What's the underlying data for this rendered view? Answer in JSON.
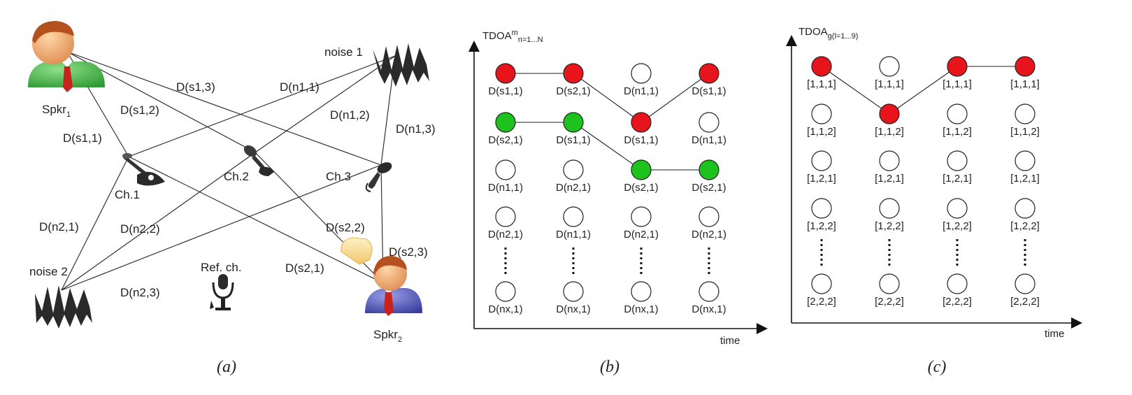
{
  "colors": {
    "red": "#e8141b",
    "green": "#1ec21e",
    "empty": "#ffffff"
  },
  "panel_a": {
    "caption": "(a)",
    "speaker1": {
      "label": "Spkr",
      "sub": "1"
    },
    "speaker2": {
      "label": "Spkr",
      "sub": "2"
    },
    "noise1": "noise 1",
    "noise2": "noise 2",
    "ref_ch": "Ref. ch.",
    "channels": [
      "Ch.1",
      "Ch.2",
      "Ch.3"
    ],
    "distances": [
      "D(s1,1)",
      "D(s1,2)",
      "D(s1,3)",
      "D(n1,1)",
      "D(n1,2)",
      "D(n1,3)",
      "D(n2,1)",
      "D(n2,2)",
      "D(n2,3)",
      "D(s2,1)",
      "D(s2,2)",
      "D(s2,3)"
    ]
  },
  "panel_b": {
    "caption": "(b)",
    "axis_y": {
      "main": "TDOA",
      "sup": "m",
      "sub": "n=1...N"
    },
    "axis_x": "time",
    "columns": [
      [
        "D(s1,1)",
        "D(s2,1)",
        "D(n1,1)",
        "D(n2,1)",
        "D(nx,1)"
      ],
      [
        "D(s2,1)",
        "D(s1,1)",
        "D(n2,1)",
        "D(n1,1)",
        "D(nx,1)"
      ],
      [
        "D(n1,1)",
        "D(s1,1)",
        "D(s2,1)",
        "D(n2,1)",
        "D(nx,1)"
      ],
      [
        "D(s1,1)",
        "D(n1,1)",
        "D(s2,1)",
        "D(n2,1)",
        "D(nx,1)"
      ]
    ],
    "states": [
      [
        "red",
        "green",
        "empty",
        "empty",
        "empty"
      ],
      [
        "red",
        "green",
        "empty",
        "empty",
        "empty"
      ],
      [
        "empty",
        "red",
        "green",
        "empty",
        "empty"
      ],
      [
        "red",
        "empty",
        "green",
        "empty",
        "empty"
      ]
    ],
    "red_path": [
      [
        0,
        0
      ],
      [
        1,
        0
      ],
      [
        2,
        1
      ],
      [
        3,
        0
      ]
    ],
    "green_path": [
      [
        0,
        1
      ],
      [
        1,
        1
      ],
      [
        2,
        2
      ],
      [
        3,
        2
      ]
    ]
  },
  "panel_c": {
    "caption": "(c)",
    "axis_y": {
      "main": "TDOA",
      "sub": "g(l=1...9)"
    },
    "axis_x": "time",
    "row_labels": [
      "[1,1,1]",
      "[1,1,2]",
      "[1,2,1]",
      "[1,2,2]",
      "[2,2,2]"
    ],
    "states": [
      [
        "red",
        "empty",
        "empty",
        "empty",
        "empty"
      ],
      [
        "empty",
        "red",
        "empty",
        "empty",
        "empty"
      ],
      [
        "red",
        "empty",
        "empty",
        "empty",
        "empty"
      ],
      [
        "red",
        "empty",
        "empty",
        "empty",
        "empty"
      ]
    ],
    "red_path": [
      [
        0,
        0
      ],
      [
        1,
        1
      ],
      [
        2,
        0
      ],
      [
        3,
        0
      ]
    ]
  }
}
